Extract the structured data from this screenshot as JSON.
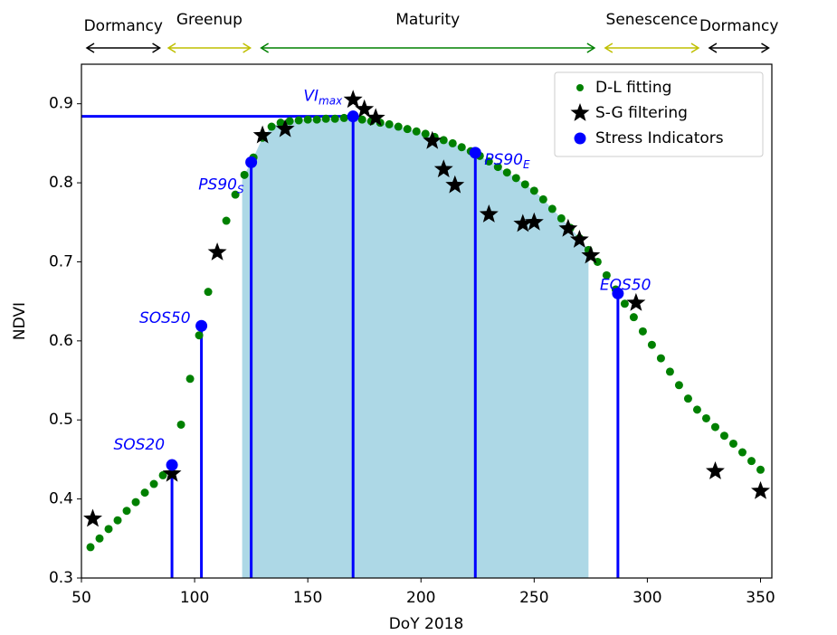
{
  "chart_data": {
    "type": "scatter",
    "xlabel": "DoY 2018",
    "ylabel": "NDVI",
    "xlim": [
      50,
      355
    ],
    "ylim": [
      0.3,
      0.95
    ],
    "xticks": [
      50,
      100,
      150,
      200,
      250,
      300,
      350
    ],
    "yticks": [
      0.3,
      0.4,
      0.5,
      0.6,
      0.7,
      0.8,
      0.9
    ],
    "legend": "upper right",
    "shade": {
      "range": [
        121,
        274
      ],
      "color": "#add8e6"
    },
    "phases": [
      {
        "label": "Dormancy",
        "start": 52,
        "end": 85,
        "color": "#000000"
      },
      {
        "label": "Greenup",
        "start": 88,
        "end": 125,
        "color": "#bfbf00"
      },
      {
        "label": "Maturity",
        "start": 129,
        "end": 277,
        "color": "#008000"
      },
      {
        "label": "Senescence",
        "start": 281,
        "end": 323,
        "color": "#bfbf00"
      },
      {
        "label": "Dormancy",
        "start": 327,
        "end": 354,
        "color": "#000000"
      }
    ],
    "series": [
      {
        "name": "D-L fitting",
        "color": "#008000",
        "marker": "dot",
        "x": [
          54,
          58,
          62,
          66,
          70,
          74,
          78,
          82,
          86,
          90,
          94,
          98,
          102,
          106,
          110,
          114,
          118,
          122,
          126,
          130,
          134,
          138,
          142,
          146,
          150,
          154,
          158,
          162,
          166,
          170,
          174,
          178,
          182,
          186,
          190,
          194,
          198,
          202,
          206,
          210,
          214,
          218,
          222,
          226,
          230,
          234,
          238,
          242,
          246,
          250,
          254,
          258,
          262,
          266,
          270,
          274,
          278,
          282,
          286,
          290,
          294,
          298,
          302,
          306,
          310,
          314,
          318,
          322,
          326,
          330,
          334,
          338,
          342,
          346,
          350
        ],
        "values": [
          0.339,
          0.35,
          0.362,
          0.373,
          0.385,
          0.396,
          0.408,
          0.419,
          0.43,
          0.441,
          0.494,
          0.552,
          0.607,
          0.662,
          0.712,
          0.752,
          0.785,
          0.81,
          0.832,
          0.857,
          0.871,
          0.876,
          0.878,
          0.879,
          0.88,
          0.88,
          0.881,
          0.881,
          0.882,
          0.882,
          0.88,
          0.878,
          0.876,
          0.874,
          0.871,
          0.868,
          0.865,
          0.862,
          0.858,
          0.854,
          0.85,
          0.845,
          0.84,
          0.834,
          0.827,
          0.82,
          0.813,
          0.806,
          0.798,
          0.79,
          0.779,
          0.767,
          0.755,
          0.743,
          0.73,
          0.715,
          0.7,
          0.683,
          0.665,
          0.647,
          0.63,
          0.612,
          0.595,
          0.578,
          0.561,
          0.544,
          0.527,
          0.513,
          0.502,
          0.491,
          0.48,
          0.47,
          0.459,
          0.448,
          0.437
        ]
      },
      {
        "name": "S-G filtering",
        "color": "#000000",
        "marker": "star",
        "x": [
          55,
          90,
          110,
          130,
          140,
          170,
          175,
          180,
          205,
          210,
          215,
          230,
          245,
          250,
          265,
          270,
          275,
          295,
          330,
          350
        ],
        "values": [
          0.375,
          0.432,
          0.712,
          0.86,
          0.868,
          0.905,
          0.893,
          0.882,
          0.853,
          0.817,
          0.797,
          0.76,
          0.748,
          0.75,
          0.742,
          0.728,
          0.708,
          0.648,
          0.435,
          0.41
        ]
      },
      {
        "name": "Stress Indicators",
        "color": "#0000ff",
        "marker": "circle",
        "x": [
          90,
          103,
          125,
          170,
          224,
          287
        ],
        "values": [
          0.443,
          0.619,
          0.826,
          0.884,
          0.838,
          0.66
        ],
        "labels": [
          "SOS20",
          "SOS50",
          "PS90",
          "VI",
          "PS90",
          "EOS50"
        ],
        "label_subscripts": [
          null,
          null,
          "S",
          "max",
          "E",
          null
        ]
      }
    ]
  }
}
